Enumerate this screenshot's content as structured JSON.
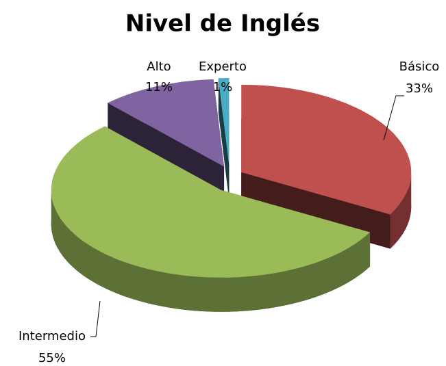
{
  "chart_data": {
    "type": "pie",
    "title": "Nivel de Inglés",
    "categories": [
      "Básico",
      "Intermedio",
      "Alto",
      "Experto"
    ],
    "values": [
      33,
      55,
      11,
      1
    ],
    "value_labels": [
      "33%",
      "55%",
      "11%",
      "1%"
    ],
    "colors": [
      "#c0504d",
      "#9bbb59",
      "#8064a2",
      "#4bacc6"
    ]
  }
}
